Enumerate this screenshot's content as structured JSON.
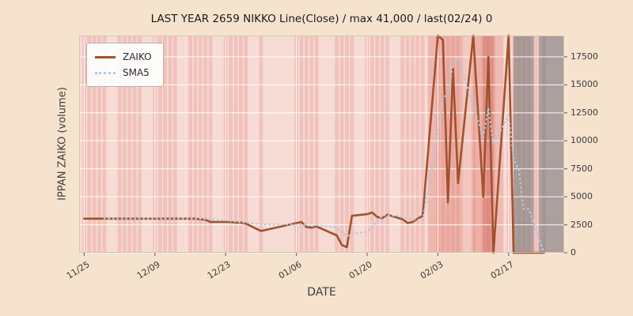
{
  "chart_data": {
    "type": "line",
    "title": "LAST YEAR 2659 NIKKO Line(Close) / max 41,000 / last(02/24) 0",
    "xlabel": "DATE",
    "ylabel": "IPPAN ZAIKO (volume)",
    "legend_position": "upper left",
    "grid": true,
    "x_range": [
      "11/24",
      "02/28"
    ],
    "ylim": [
      0,
      19400
    ],
    "yticks": [
      0,
      2500,
      5000,
      7500,
      10000,
      12500,
      15000,
      17500
    ],
    "xticks": [
      "11/25",
      "12/09",
      "12/23",
      "01/06",
      "01/20",
      "02/03",
      "02/17"
    ],
    "dates": [
      "11/25",
      "11/26",
      "11/27",
      "11/28",
      "11/29",
      "12/02",
      "12/03",
      "12/04",
      "12/05",
      "12/06",
      "12/09",
      "12/10",
      "12/11",
      "12/12",
      "12/13",
      "12/16",
      "12/17",
      "12/18",
      "12/19",
      "12/20",
      "12/23",
      "12/24",
      "12/25",
      "12/26",
      "12/27",
      "12/30",
      "01/06",
      "01/07",
      "01/08",
      "01/09",
      "01/10",
      "01/14",
      "01/15",
      "01/16",
      "01/17",
      "01/20",
      "01/21",
      "01/22",
      "01/23",
      "01/24",
      "01/27",
      "01/28",
      "01/29",
      "01/30",
      "01/31",
      "02/03",
      "02/04",
      "02/05",
      "02/06",
      "02/07",
      "02/10",
      "02/12",
      "02/13",
      "02/14",
      "02/17",
      "02/18",
      "02/19",
      "02/20",
      "02/21",
      "02/24"
    ],
    "series": [
      {
        "name": "ZAIKO",
        "color": "#a0522d",
        "line_style": "solid",
        "values": [
          3050,
          3050,
          3050,
          3050,
          3050,
          3050,
          3050,
          3050,
          3050,
          3050,
          3050,
          3050,
          3050,
          3050,
          3050,
          3050,
          3050,
          3000,
          2950,
          2750,
          2750,
          2750,
          2700,
          2700,
          2600,
          1950,
          2650,
          2750,
          2300,
          2250,
          2350,
          1550,
          700,
          500,
          3300,
          3450,
          3600,
          3200,
          3100,
          3400,
          3000,
          2650,
          2750,
          3050,
          3300,
          41000,
          19000,
          4500,
          16500,
          6200,
          19500,
          5000,
          17500,
          0,
          19500,
          0,
          0,
          0,
          0,
          0
        ]
      },
      {
        "name": "SMA5",
        "color": "#a9cce3",
        "line_style": "dotted",
        "values": [
          null,
          null,
          null,
          null,
          3050,
          3050,
          3050,
          3050,
          3050,
          3050,
          3050,
          3050,
          3050,
          3050,
          3050,
          3050,
          3050,
          3040,
          3020,
          2960,
          2900,
          2840,
          2780,
          2730,
          2700,
          2540,
          2520,
          2530,
          2450,
          2380,
          2460,
          2240,
          1830,
          1470,
          1680,
          1900,
          2310,
          2810,
          3330,
          3350,
          3260,
          3070,
          2980,
          2970,
          2950,
          10550,
          13820,
          14170,
          16860,
          17440,
          13140,
          10340,
          12940,
          9640,
          12300,
          8400,
          7400,
          3900,
          3900,
          0
        ]
      }
    ],
    "background_bands": [
      {
        "from": "02/01",
        "to": "02/08",
        "color": "rgba(222,115,100,0.35)"
      },
      {
        "from": "02/08",
        "to": "02/10",
        "color": "rgba(222,115,100,0.18)"
      },
      {
        "from": "02/10",
        "to": "02/12",
        "color": "rgba(222,115,100,0.42)"
      },
      {
        "from": "02/12",
        "to": "02/14",
        "color": "rgba(198,74,58,0.45)"
      },
      {
        "from": "02/14",
        "to": "02/16",
        "color": "rgba(222,115,100,0.32)"
      },
      {
        "from": "02/18",
        "to": "02/22",
        "color": "rgba(120,120,120,0.60)"
      },
      {
        "from": "02/22",
        "to": "02/23",
        "color": "rgba(222,115,100,0.25)"
      },
      {
        "from": "02/23",
        "to": "02/28",
        "color": "rgba(120,120,120,0.60)"
      }
    ],
    "colors": {
      "figure_bg": "#f6e3cd",
      "plot_bg": "#f7dcd6",
      "stripe": "rgba(228,136,125,0.30)",
      "grid": "#ffffff",
      "spine": "#cfc3b6"
    }
  },
  "legend": {
    "items": [
      {
        "label": "ZAIKO"
      },
      {
        "label": "SMA5"
      }
    ]
  }
}
